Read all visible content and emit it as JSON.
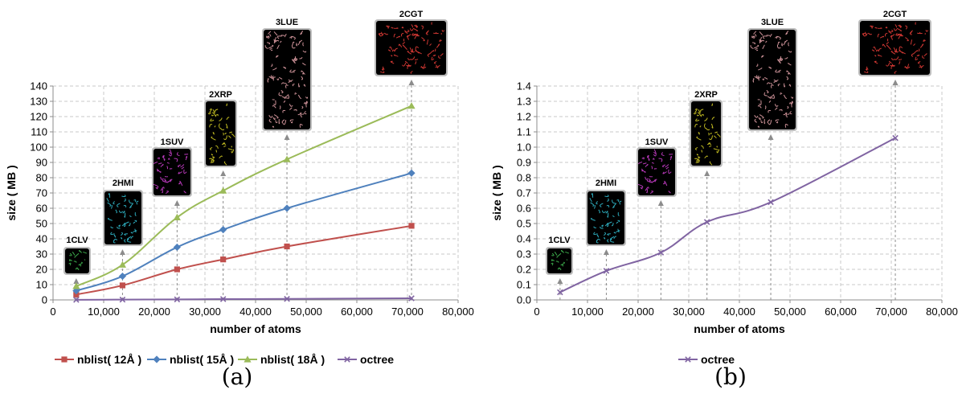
{
  "chart_data": [
    {
      "type": "line",
      "panel": "(a)",
      "xlabel": "number of atoms",
      "ylabel": "size ( MB )",
      "xlim": [
        0,
        80000
      ],
      "ylim": [
        0,
        140
      ],
      "x_ticks": [
        0,
        10000,
        20000,
        30000,
        40000,
        50000,
        60000,
        70000,
        80000
      ],
      "x_tick_labels": [
        "0",
        "10,000",
        "20,000",
        "30,000",
        "40,000",
        "50,000",
        "60,000",
        "70,000",
        "80,000"
      ],
      "y_ticks": [
        0,
        10,
        20,
        30,
        40,
        50,
        60,
        70,
        80,
        90,
        100,
        110,
        120,
        130,
        140
      ],
      "y_tick_labels": [
        "0",
        "10",
        "20",
        "30",
        "40",
        "50",
        "60",
        "70",
        "80",
        "90",
        "100",
        "110",
        "120",
        "130",
        "140"
      ],
      "grid": true,
      "legend_position": "bottom",
      "x": [
        4580,
        13720,
        24500,
        33600,
        46200,
        70800
      ],
      "series": [
        {
          "name": "nblist( 12Å )",
          "color": "#c0504d",
          "marker": "square",
          "values": [
            3.5,
            9.5,
            20,
            26.5,
            35,
            48.5
          ]
        },
        {
          "name": "nblist( 15Å )",
          "color": "#4f81bd",
          "marker": "diamond",
          "values": [
            6,
            15.5,
            34.5,
            46,
            60,
            83
          ]
        },
        {
          "name": "nblist( 18Å )",
          "color": "#9bbb59",
          "marker": "triangle",
          "values": [
            9,
            23,
            54,
            71.5,
            92,
            127
          ]
        },
        {
          "name": "octree",
          "color": "#8064a2",
          "marker": "x",
          "values": [
            0.05,
            0.19,
            0.31,
            0.51,
            0.64,
            1.06
          ]
        }
      ],
      "annotations": [
        "1CLV",
        "2HMI",
        "1SUV",
        "2XRP",
        "3LUE",
        "2CGT"
      ]
    },
    {
      "type": "line",
      "panel": "(b)",
      "xlabel": "number of atoms",
      "ylabel": "size ( MB )",
      "xlim": [
        0,
        80000
      ],
      "ylim": [
        0,
        1.4
      ],
      "x_ticks": [
        0,
        10000,
        20000,
        30000,
        40000,
        50000,
        60000,
        70000,
        80000
      ],
      "x_tick_labels": [
        "0",
        "10,000",
        "20,000",
        "30,000",
        "40,000",
        "50,000",
        "60,000",
        "70,000",
        "80,000"
      ],
      "y_ticks": [
        0,
        0.1,
        0.2,
        0.3,
        0.4,
        0.5,
        0.6,
        0.7,
        0.8,
        0.9,
        1.0,
        1.1,
        1.2,
        1.3,
        1.4
      ],
      "y_tick_labels": [
        "0.0",
        "0.1",
        "0.2",
        "0.3",
        "0.4",
        "0.5",
        "0.6",
        "0.7",
        "0.8",
        "0.9",
        "1.0",
        "1.1",
        "1.2",
        "1.3",
        "1.4"
      ],
      "grid": true,
      "legend_position": "bottom",
      "x": [
        4580,
        13720,
        24500,
        33600,
        46200,
        70800
      ],
      "series": [
        {
          "name": "octree",
          "color": "#8064a2",
          "marker": "x",
          "values": [
            0.05,
            0.19,
            0.31,
            0.51,
            0.64,
            1.06
          ]
        }
      ],
      "annotations": [
        "1CLV",
        "2HMI",
        "1SUV",
        "2XRP",
        "3LUE",
        "2CGT"
      ]
    }
  ]
}
